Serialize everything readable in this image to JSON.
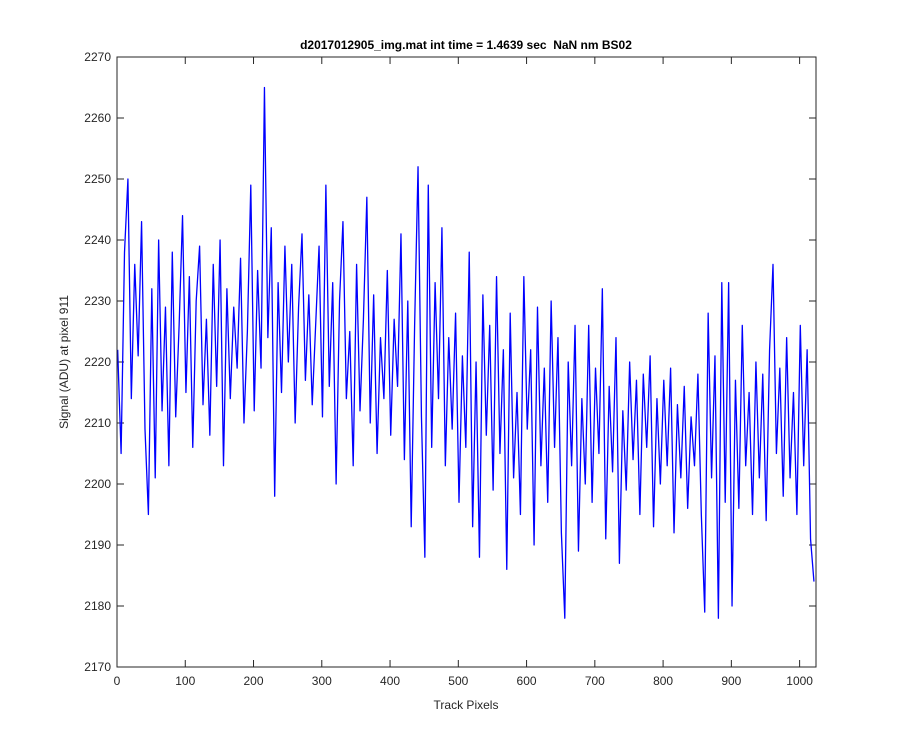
{
  "chart_data": {
    "type": "line",
    "title": "d2017012905_img.mat int time = 1.4639 sec  NaN nm BS02",
    "x_label": "Track Pixels",
    "y_label": "Signal (ADU) at pixel 911",
    "color": "#0000ff",
    "xlim": [
      0,
      1024
    ],
    "ylim": [
      2170,
      2270
    ],
    "xticks": [
      0,
      100,
      200,
      300,
      400,
      500,
      600,
      700,
      800,
      900,
      1000
    ],
    "yticks": [
      2170,
      2180,
      2190,
      2200,
      2210,
      2220,
      2230,
      2240,
      2250,
      2260,
      2270
    ],
    "grid": false,
    "x": [
      1,
      6,
      11,
      16,
      21,
      26,
      31,
      36,
      41,
      46,
      51,
      56,
      61,
      66,
      71,
      76,
      81,
      86,
      91,
      96,
      101,
      106,
      111,
      116,
      121,
      126,
      131,
      136,
      141,
      146,
      151,
      156,
      161,
      166,
      171,
      176,
      181,
      186,
      191,
      196,
      201,
      206,
      211,
      216,
      221,
      226,
      231,
      236,
      241,
      246,
      251,
      256,
      261,
      266,
      271,
      276,
      281,
      286,
      291,
      296,
      301,
      306,
      311,
      316,
      321,
      326,
      331,
      336,
      341,
      346,
      351,
      356,
      361,
      366,
      371,
      376,
      381,
      386,
      391,
      396,
      401,
      406,
      411,
      416,
      421,
      426,
      431,
      436,
      441,
      446,
      451,
      456,
      461,
      466,
      471,
      476,
      481,
      486,
      491,
      496,
      501,
      506,
      511,
      516,
      521,
      526,
      531,
      536,
      541,
      546,
      551,
      556,
      561,
      566,
      571,
      576,
      581,
      586,
      591,
      596,
      601,
      606,
      611,
      616,
      621,
      626,
      631,
      636,
      641,
      646,
      651,
      656,
      661,
      666,
      671,
      676,
      681,
      686,
      691,
      696,
      701,
      706,
      711,
      716,
      721,
      726,
      731,
      736,
      741,
      746,
      751,
      756,
      761,
      766,
      771,
      776,
      781,
      786,
      791,
      796,
      801,
      806,
      811,
      816,
      821,
      826,
      831,
      836,
      841,
      846,
      851,
      856,
      861,
      866,
      871,
      876,
      881,
      886,
      891,
      896,
      901,
      906,
      911,
      916,
      921,
      926,
      931,
      936,
      941,
      946,
      951,
      956,
      961,
      966,
      971,
      976,
      981,
      986,
      991,
      996,
      1001,
      1006,
      1011,
      1016,
      1021
    ],
    "values": [
      2222,
      2205,
      2238,
      2250,
      2214,
      2236,
      2221,
      2243,
      2209,
      2195,
      2232,
      2201,
      2240,
      2212,
      2229,
      2203,
      2238,
      2211,
      2226,
      2244,
      2215,
      2234,
      2206,
      2230,
      2239,
      2213,
      2227,
      2208,
      2236,
      2216,
      2240,
      2203,
      2232,
      2214,
      2229,
      2219,
      2237,
      2210,
      2225,
      2249,
      2212,
      2235,
      2219,
      2265,
      2224,
      2242,
      2198,
      2233,
      2215,
      2239,
      2220,
      2236,
      2210,
      2229,
      2241,
      2217,
      2231,
      2213,
      2226,
      2239,
      2211,
      2249,
      2216,
      2233,
      2200,
      2230,
      2243,
      2214,
      2225,
      2203,
      2236,
      2212,
      2227,
      2247,
      2210,
      2231,
      2205,
      2224,
      2214,
      2235,
      2208,
      2227,
      2216,
      2241,
      2204,
      2230,
      2193,
      2226,
      2252,
      2211,
      2188,
      2249,
      2206,
      2233,
      2214,
      2242,
      2203,
      2224,
      2209,
      2228,
      2197,
      2221,
      2206,
      2238,
      2193,
      2220,
      2188,
      2231,
      2208,
      2226,
      2199,
      2234,
      2205,
      2222,
      2186,
      2228,
      2201,
      2215,
      2195,
      2234,
      2209,
      2222,
      2190,
      2229,
      2203,
      2219,
      2197,
      2230,
      2206,
      2224,
      2192,
      2178,
      2220,
      2203,
      2226,
      2189,
      2214,
      2200,
      2226,
      2197,
      2219,
      2205,
      2232,
      2191,
      2216,
      2202,
      2224,
      2187,
      2212,
      2199,
      2220,
      2204,
      2217,
      2195,
      2218,
      2206,
      2221,
      2193,
      2214,
      2200,
      2217,
      2203,
      2219,
      2192,
      2213,
      2201,
      2216,
      2196,
      2211,
      2203,
      2218,
      2195,
      2179,
      2228,
      2201,
      2221,
      2178,
      2233,
      2197,
      2233,
      2180,
      2217,
      2196,
      2226,
      2203,
      2215,
      2195,
      2220,
      2201,
      2218,
      2194,
      2222,
      2236,
      2205,
      2219,
      2198,
      2224,
      2201,
      2215,
      2195,
      2226,
      2203,
      2222,
      2191,
      2184
    ]
  }
}
